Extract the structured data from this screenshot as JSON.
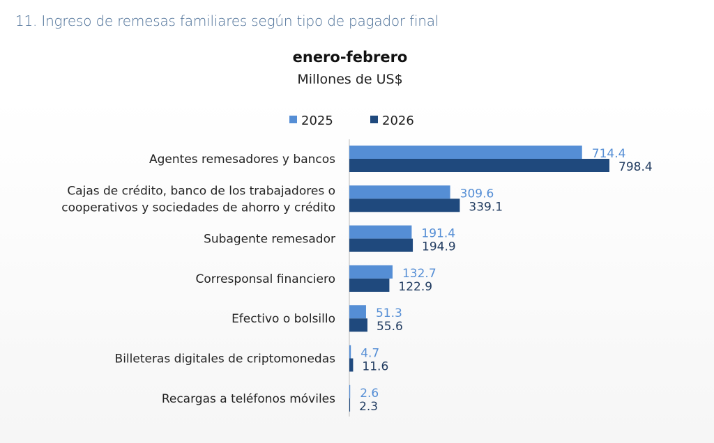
{
  "figure_title": "11.  Ingreso de remesas familiares según tipo de pagador final",
  "chart_data": {
    "type": "bar",
    "orientation": "horizontal",
    "title": "enero-febrero",
    "subtitle": "Millones de US$",
    "legend_position": "top",
    "grid": false,
    "categories": [
      [
        "Agentes remesadores y bancos"
      ],
      [
        "Cajas de crédito, banco de los trabajadores o",
        "cooperativos y sociedades de ahorro y crédito"
      ],
      [
        "Subagente remesador"
      ],
      [
        "Corresponsal financiero"
      ],
      [
        "Efectivo o bolsillo"
      ],
      [
        "Billeteras digitales de criptomonedas"
      ],
      [
        "Recargas a teléfonos móviles"
      ]
    ],
    "series": [
      {
        "name": "2025",
        "color": "#558ed5",
        "values": [
          714.4,
          309.6,
          191.4,
          132.7,
          51.3,
          4.7,
          2.6
        ],
        "labels": [
          "714.4",
          "309.6",
          "191.4",
          "132.7",
          "51.3",
          "4.7",
          "2.6"
        ]
      },
      {
        "name": "2026",
        "color": "#1f497d",
        "values": [
          798.4,
          339.1,
          194.9,
          122.9,
          55.6,
          11.6,
          2.3
        ],
        "labels": [
          "798.4",
          "339.1",
          "194.9",
          "122.9",
          "55.6",
          "11.6",
          "2.3"
        ]
      }
    ],
    "xlim": [
      0,
      850
    ]
  }
}
